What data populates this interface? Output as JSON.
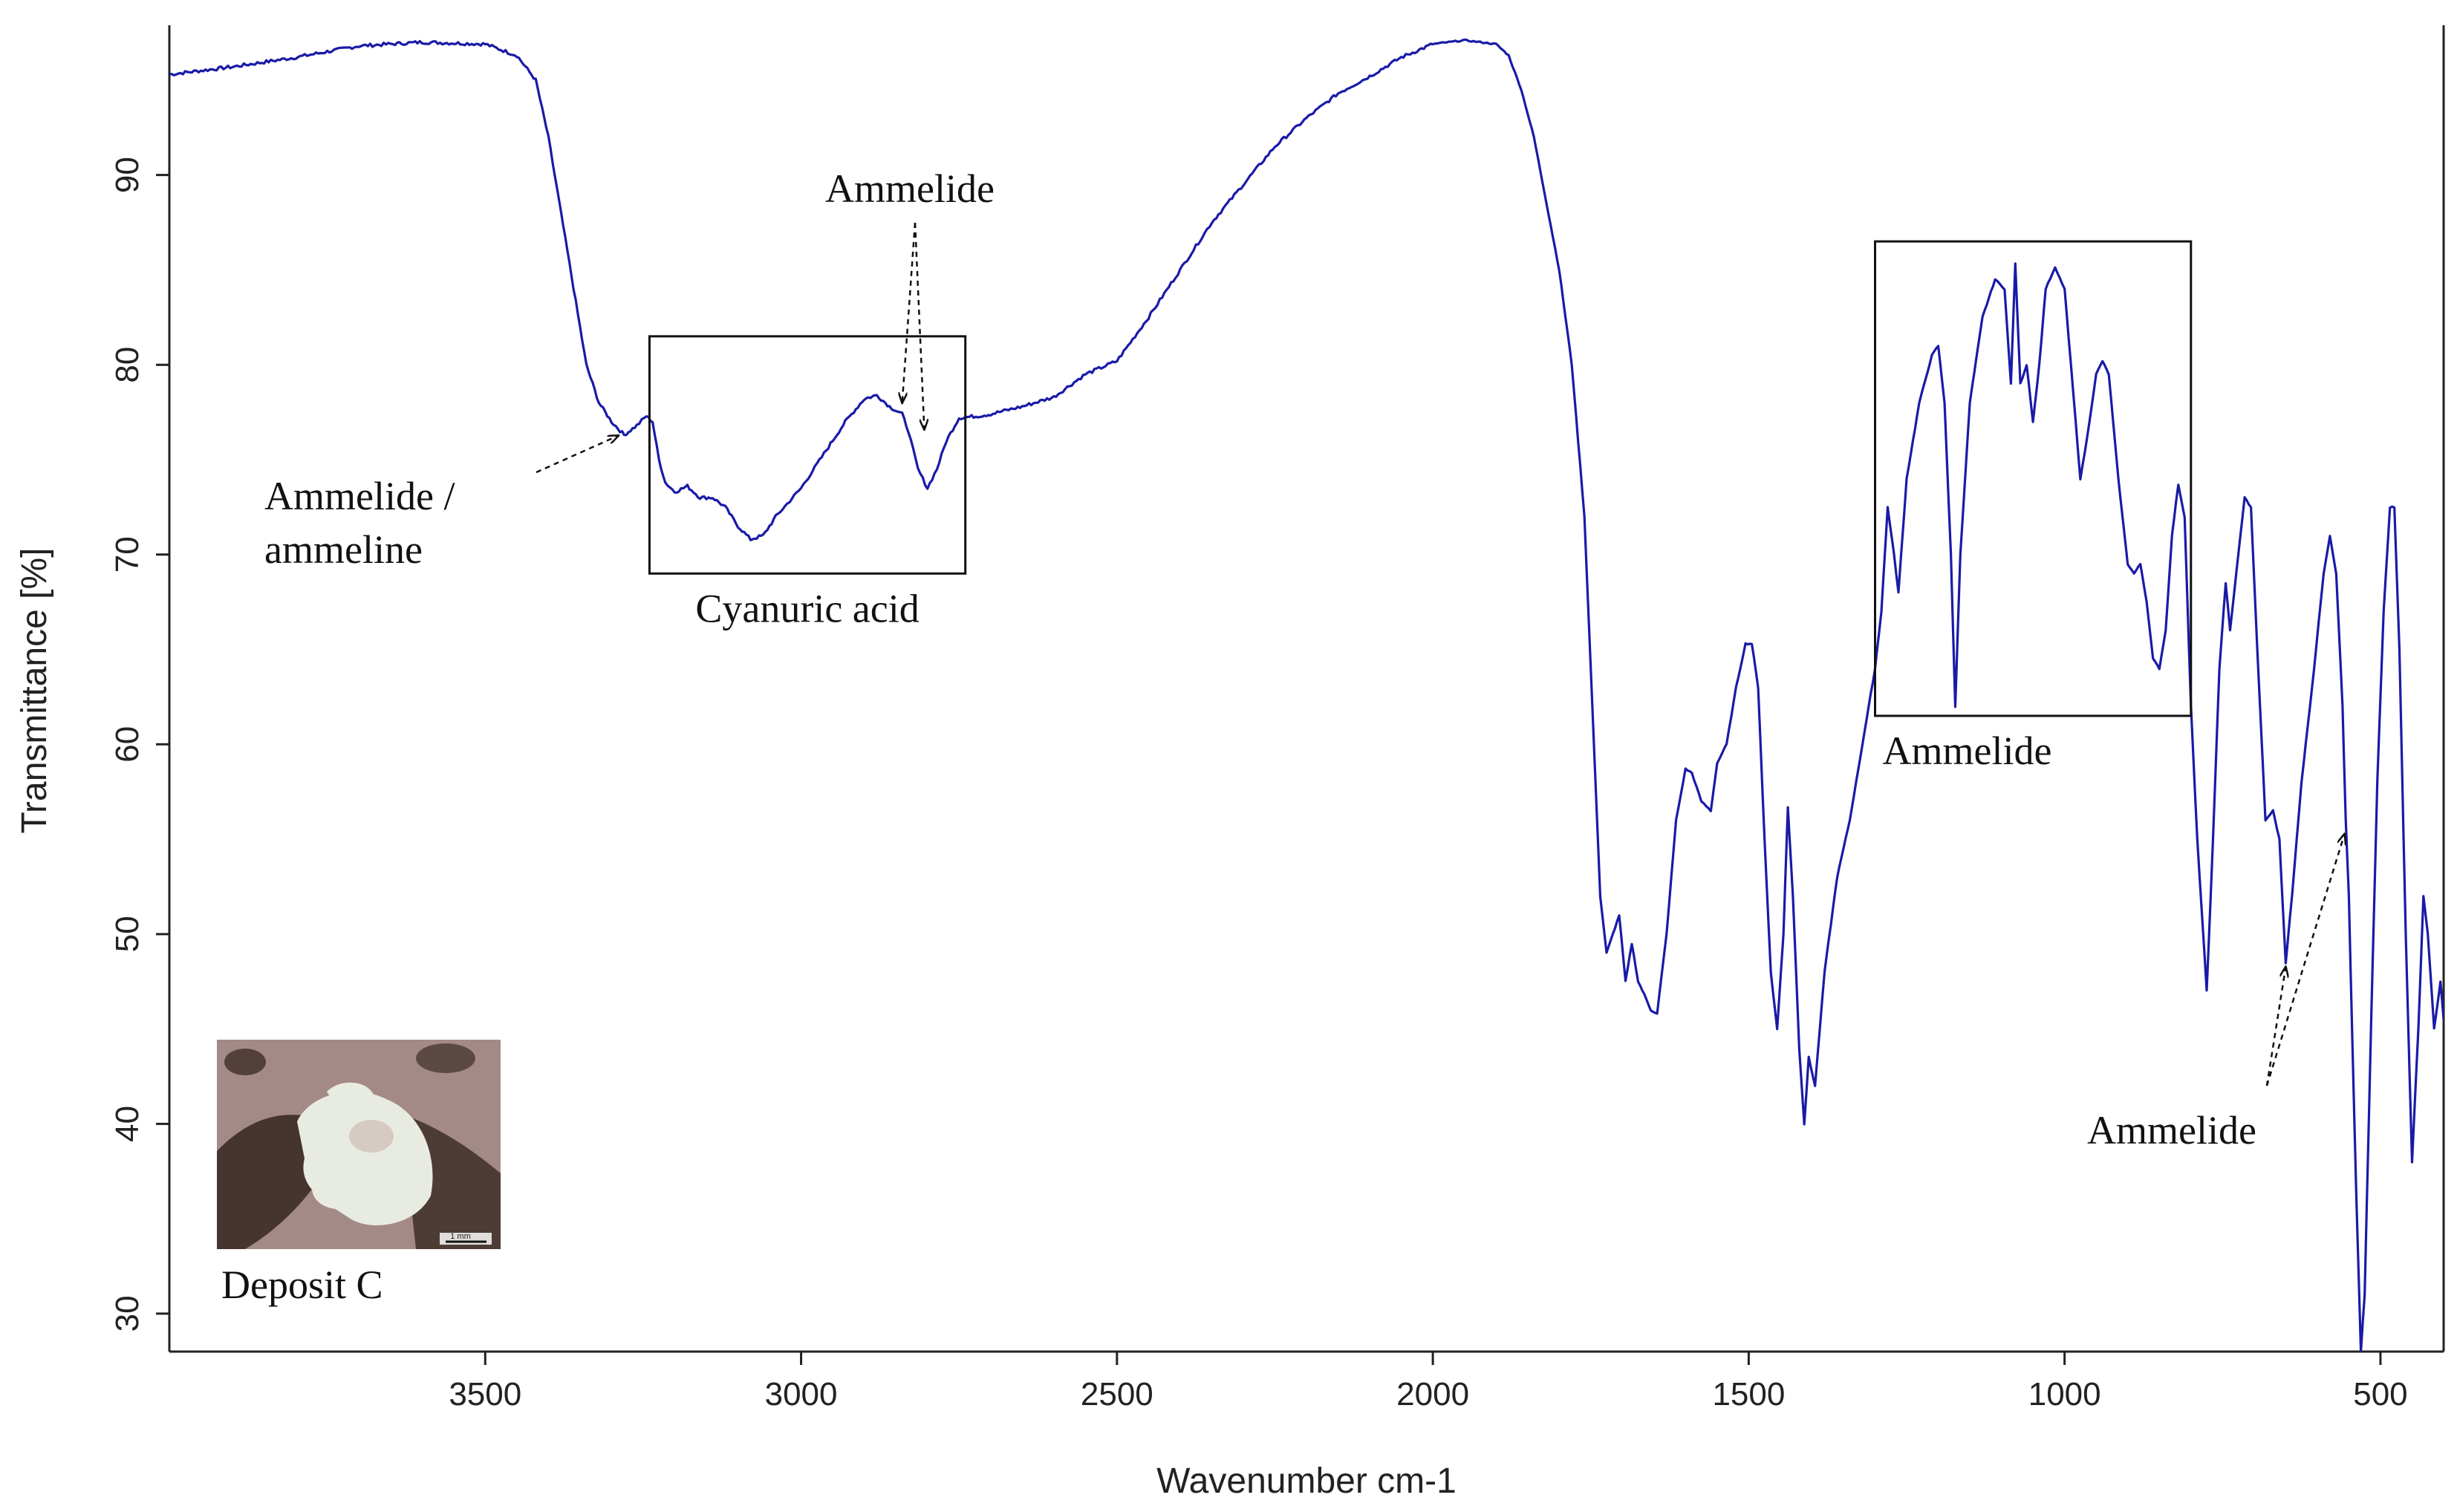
{
  "chart_data": {
    "type": "line",
    "title": "",
    "xlabel": "Wavenumber cm-1",
    "ylabel": "Transmittance [%]",
    "xlim": [
      4000,
      400
    ],
    "ylim": [
      28,
      97.5
    ],
    "x_reversed": true,
    "x_ticks": [
      3500,
      3000,
      2500,
      2000,
      1500,
      1000,
      500
    ],
    "y_ticks": [
      30,
      40,
      50,
      60,
      70,
      80,
      90
    ],
    "grid": false,
    "legend": "none",
    "line_color": "#1a1aa8",
    "series": [
      {
        "points": [
          [
            4000,
            95.3
          ],
          [
            3900,
            95.7
          ],
          [
            3800,
            96.2
          ],
          [
            3700,
            96.8
          ],
          [
            3600,
            97.0
          ],
          [
            3500,
            96.9
          ],
          [
            3450,
            96.3
          ],
          [
            3420,
            95.0
          ],
          [
            3400,
            92.0
          ],
          [
            3380,
            88.0
          ],
          [
            3360,
            84.0
          ],
          [
            3340,
            80.0
          ],
          [
            3320,
            78.0
          ],
          [
            3300,
            77.0
          ],
          [
            3280,
            76.3
          ],
          [
            3260,
            76.8
          ],
          [
            3245,
            77.3
          ],
          [
            3235,
            77.0
          ],
          [
            3225,
            75.0
          ],
          [
            3215,
            73.8
          ],
          [
            3200,
            73.3
          ],
          [
            3180,
            73.6
          ],
          [
            3160,
            73.0
          ],
          [
            3140,
            73.0
          ],
          [
            3120,
            72.5
          ],
          [
            3100,
            71.5
          ],
          [
            3080,
            70.8
          ],
          [
            3060,
            71.0
          ],
          [
            3040,
            72.0
          ],
          [
            3000,
            73.5
          ],
          [
            2960,
            75.5
          ],
          [
            2930,
            77.0
          ],
          [
            2900,
            78.2
          ],
          [
            2880,
            78.4
          ],
          [
            2860,
            77.8
          ],
          [
            2840,
            77.4
          ],
          [
            2830,
            76.5
          ],
          [
            2815,
            74.5
          ],
          [
            2800,
            73.5
          ],
          [
            2785,
            74.5
          ],
          [
            2770,
            76.0
          ],
          [
            2750,
            77.2
          ],
          [
            2720,
            77.3
          ],
          [
            2700,
            77.4
          ],
          [
            2650,
            77.8
          ],
          [
            2600,
            78.3
          ],
          [
            2550,
            79.5
          ],
          [
            2500,
            80.2
          ],
          [
            2450,
            82.5
          ],
          [
            2400,
            85.0
          ],
          [
            2350,
            87.5
          ],
          [
            2300,
            89.5
          ],
          [
            2250,
            91.5
          ],
          [
            2200,
            93.0
          ],
          [
            2150,
            94.3
          ],
          [
            2100,
            95.2
          ],
          [
            2050,
            96.2
          ],
          [
            2000,
            96.9
          ],
          [
            1950,
            97.1
          ],
          [
            1900,
            96.9
          ],
          [
            1880,
            96.3
          ],
          [
            1860,
            94.5
          ],
          [
            1840,
            92.0
          ],
          [
            1820,
            88.5
          ],
          [
            1800,
            85.0
          ],
          [
            1780,
            80.0
          ],
          [
            1760,
            72.0
          ],
          [
            1745,
            60.0
          ],
          [
            1735,
            52.0
          ],
          [
            1725,
            49.0
          ],
          [
            1715,
            50.0
          ],
          [
            1705,
            51.0
          ],
          [
            1695,
            47.5
          ],
          [
            1685,
            49.5
          ],
          [
            1675,
            47.5
          ],
          [
            1665,
            46.8
          ],
          [
            1655,
            46.0
          ],
          [
            1645,
            45.8
          ],
          [
            1630,
            50.0
          ],
          [
            1615,
            56.0
          ],
          [
            1600,
            58.7
          ],
          [
            1590,
            58.5
          ],
          [
            1575,
            57.0
          ],
          [
            1560,
            56.5
          ],
          [
            1550,
            59.0
          ],
          [
            1535,
            60.0
          ],
          [
            1520,
            63.0
          ],
          [
            1505,
            65.3
          ],
          [
            1495,
            65.3
          ],
          [
            1485,
            63.0
          ],
          [
            1475,
            55.0
          ],
          [
            1465,
            48.0
          ],
          [
            1455,
            45.0
          ],
          [
            1445,
            50.0
          ],
          [
            1438,
            56.7
          ],
          [
            1430,
            52.0
          ],
          [
            1420,
            44.0
          ],
          [
            1412,
            40.0
          ],
          [
            1405,
            43.5
          ],
          [
            1395,
            42.0
          ],
          [
            1380,
            48.0
          ],
          [
            1360,
            53.0
          ],
          [
            1340,
            56.0
          ],
          [
            1320,
            60.0
          ],
          [
            1300,
            64.0
          ],
          [
            1290,
            67.0
          ],
          [
            1280,
            72.5
          ],
          [
            1270,
            70.0
          ],
          [
            1263,
            68.0
          ],
          [
            1250,
            74.0
          ],
          [
            1230,
            78.0
          ],
          [
            1210,
            80.5
          ],
          [
            1200,
            81.0
          ],
          [
            1190,
            78.0
          ],
          [
            1180,
            70.0
          ],
          [
            1173,
            62.0
          ],
          [
            1165,
            70.0
          ],
          [
            1150,
            78.0
          ],
          [
            1130,
            82.5
          ],
          [
            1110,
            84.5
          ],
          [
            1095,
            84.0
          ],
          [
            1085,
            79.0
          ],
          [
            1078,
            85.3
          ],
          [
            1070,
            79.0
          ],
          [
            1060,
            80.0
          ],
          [
            1050,
            77.0
          ],
          [
            1040,
            80.0
          ],
          [
            1030,
            84.0
          ],
          [
            1015,
            85.1
          ],
          [
            1000,
            84.0
          ],
          [
            990,
            80.0
          ],
          [
            975,
            74.0
          ],
          [
            965,
            76.0
          ],
          [
            950,
            79.5
          ],
          [
            940,
            80.2
          ],
          [
            930,
            79.5
          ],
          [
            915,
            74.0
          ],
          [
            900,
            69.5
          ],
          [
            890,
            69.0
          ],
          [
            880,
            69.5
          ],
          [
            870,
            67.5
          ],
          [
            860,
            64.5
          ],
          [
            850,
            64.0
          ],
          [
            840,
            66.0
          ],
          [
            830,
            71.0
          ],
          [
            820,
            73.7
          ],
          [
            810,
            72.0
          ],
          [
            800,
            62.0
          ],
          [
            790,
            55.0
          ],
          [
            775,
            47.0
          ],
          [
            765,
            55.0
          ],
          [
            755,
            64.0
          ],
          [
            745,
            68.5
          ],
          [
            738,
            66.0
          ],
          [
            725,
            70.0
          ],
          [
            715,
            73.0
          ],
          [
            705,
            72.5
          ],
          [
            695,
            65.0
          ],
          [
            682,
            56.0
          ],
          [
            670,
            56.5
          ],
          [
            660,
            55.0
          ],
          [
            650,
            48.5
          ],
          [
            640,
            52.0
          ],
          [
            625,
            58.0
          ],
          [
            605,
            64.0
          ],
          [
            590,
            69.0
          ],
          [
            580,
            71.0
          ],
          [
            570,
            69.0
          ],
          [
            560,
            62.0
          ],
          [
            555,
            56.0
          ],
          [
            550,
            52.0
          ],
          [
            545,
            45.0
          ],
          [
            538,
            36.0
          ],
          [
            531,
            28.0
          ],
          [
            525,
            31.0
          ],
          [
            515,
            45.0
          ],
          [
            505,
            58.0
          ],
          [
            495,
            67.0
          ],
          [
            485,
            72.5
          ],
          [
            478,
            72.5
          ],
          [
            470,
            65.0
          ],
          [
            460,
            50.0
          ],
          [
            450,
            38.0
          ],
          [
            440,
            45.0
          ],
          [
            432,
            52.0
          ],
          [
            425,
            50.0
          ],
          [
            415,
            45.0
          ],
          [
            405,
            47.5
          ],
          [
            400,
            45.5
          ]
        ]
      }
    ],
    "boxes": [
      {
        "x": [
          3240,
          2740
        ],
        "y": [
          69,
          81.5
        ],
        "label": "Cyanuric acid"
      },
      {
        "x": [
          1300,
          800
        ],
        "y": [
          61.5,
          86.5
        ],
        "label": "Ammelide"
      }
    ],
    "annotations": [
      {
        "text": "Ammelide",
        "arrow_targets": [
          [
            2840,
            78.0
          ],
          [
            2805,
            76.6
          ]
        ]
      },
      {
        "lines": [
          "Ammelide  /",
          "ammeline"
        ],
        "arrow_targets": [
          [
            3280,
            76.5
          ]
        ]
      },
      {
        "text": "Ammelide",
        "arrow_targets": [
          [
            650,
            48.5
          ],
          [
            557,
            55.5
          ]
        ]
      }
    ]
  },
  "inset": {
    "caption": "Deposit C",
    "scale_text": "1 mm",
    "colors": [
      "#a48a86",
      "#3e2d28",
      "#e8ebe2",
      "#c9b5ae"
    ]
  }
}
